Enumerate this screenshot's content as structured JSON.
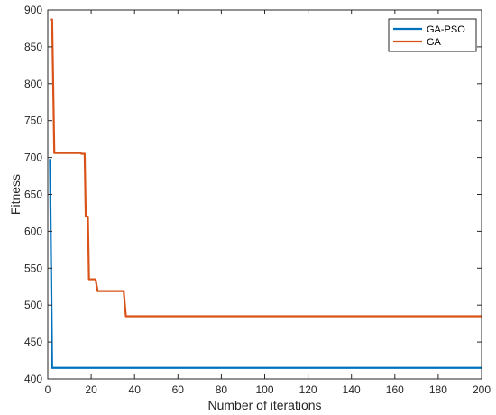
{
  "chart_data": {
    "type": "line",
    "title": "",
    "xlabel": "Number of iterations",
    "ylabel": "Fitness",
    "xlim": [
      0,
      200
    ],
    "ylim": [
      400,
      900
    ],
    "xticks": [
      0,
      20,
      40,
      60,
      80,
      100,
      120,
      140,
      160,
      180,
      200
    ],
    "yticks": [
      400,
      450,
      500,
      550,
      600,
      650,
      700,
      750,
      800,
      850,
      900
    ],
    "grid": false,
    "legend_position": "top-right",
    "series": [
      {
        "name": "GA-PSO",
        "color": "#0072BD",
        "points": [
          [
            1,
            698
          ],
          [
            2,
            415
          ],
          [
            200,
            415
          ]
        ]
      },
      {
        "name": "GA",
        "color": "#D95319",
        "points": [
          [
            1,
            887
          ],
          [
            2,
            887
          ],
          [
            3,
            706
          ],
          [
            15,
            706
          ],
          [
            15.5,
            705
          ],
          [
            17,
            705
          ],
          [
            17.5,
            620
          ],
          [
            18.5,
            620
          ],
          [
            19,
            535
          ],
          [
            22,
            535
          ],
          [
            23,
            519
          ],
          [
            35,
            519
          ],
          [
            36,
            485
          ],
          [
            200,
            485
          ]
        ]
      }
    ]
  }
}
